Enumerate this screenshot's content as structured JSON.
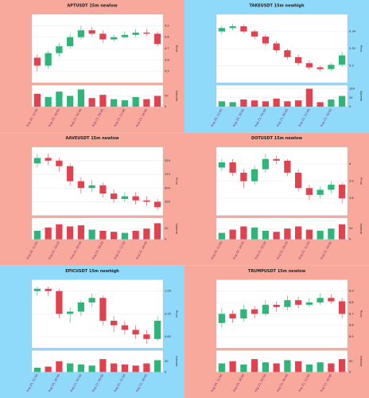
{
  "chart_data": [
    {
      "type": "candlestick",
      "title": "APTUSDT 15m newlow",
      "background": "#f9a99b",
      "up_color": "#2fb57a",
      "down_color": "#e0424f",
      "categories": [
        "Aug 20, 12:00",
        null,
        "Aug 20, 18:00",
        null,
        "Aug 21, 00:00",
        null,
        "Aug 21, 06:00",
        null,
        "Aug 21, 12:00",
        null,
        "Aug 21, 18:00",
        null
      ],
      "open": [
        4.62,
        4.55,
        4.66,
        4.72,
        4.8,
        4.86,
        4.83,
        4.78,
        4.8,
        4.82,
        4.84,
        4.83
      ],
      "high": [
        4.65,
        4.68,
        4.75,
        4.83,
        4.9,
        4.89,
        4.86,
        4.82,
        4.85,
        4.87,
        4.87,
        4.85
      ],
      "low": [
        4.5,
        4.52,
        4.63,
        4.7,
        4.78,
        4.81,
        4.75,
        4.76,
        4.79,
        4.8,
        4.81,
        4.72
      ],
      "close": [
        4.55,
        4.66,
        4.72,
        4.8,
        4.86,
        4.83,
        4.78,
        4.8,
        4.82,
        4.84,
        4.83,
        4.74
      ],
      "volume": [
        60,
        45,
        70,
        50,
        80,
        40,
        55,
        35,
        30,
        45,
        35,
        50
      ],
      "ylim": [
        4.4,
        5.0
      ],
      "yticks": [
        4.5,
        4.6,
        4.7,
        4.8,
        4.9
      ],
      "vlim": [
        0,
        100
      ],
      "vticks": [
        0,
        50
      ],
      "ylabel": "Price",
      "vlabel": "Volume"
    },
    {
      "type": "candlestick",
      "title": "TAKEUSDT 15m newhigh",
      "background": "#8fd9fb",
      "up_color": "#2fb57a",
      "down_color": "#e0424f",
      "categories": [
        "Aug 20, 12:00",
        null,
        "Aug 20, 18:00",
        null,
        "Aug 21, 00:00",
        null,
        "Aug 21, 06:00",
        null,
        "Aug 21, 12:00",
        null,
        "Aug 21, 18:00",
        null
      ],
      "open": [
        0.34,
        0.344,
        0.346,
        0.34,
        0.334,
        0.326,
        0.318,
        0.31,
        0.303,
        0.298,
        0.296,
        0.301
      ],
      "high": [
        0.347,
        0.349,
        0.348,
        0.342,
        0.336,
        0.329,
        0.32,
        0.313,
        0.306,
        0.3,
        0.303,
        0.316
      ],
      "low": [
        0.337,
        0.341,
        0.338,
        0.331,
        0.323,
        0.315,
        0.307,
        0.3,
        0.295,
        0.293,
        0.294,
        0.299
      ],
      "close": [
        0.344,
        0.346,
        0.34,
        0.334,
        0.326,
        0.318,
        0.31,
        0.303,
        0.298,
        0.296,
        0.301,
        0.312
      ],
      "volume": [
        30,
        25,
        40,
        35,
        30,
        45,
        30,
        35,
        100,
        25,
        40,
        60
      ],
      "ylim": [
        0.28,
        0.36
      ],
      "yticks": [
        0.3,
        0.32,
        0.34
      ],
      "vlim": [
        0,
        120
      ],
      "vticks": [
        0,
        50,
        100
      ],
      "ylabel": "Price",
      "vlabel": "Volume"
    },
    {
      "type": "candlestick",
      "title": "AAVEUSDT 15m newlow",
      "background": "#f9a99b",
      "up_color": "#2fb57a",
      "down_color": "#e0424f",
      "categories": [
        "Aug 20, 12:00",
        null,
        "Aug 20, 18:00",
        null,
        "Aug 21, 00:00",
        null,
        "Aug 21, 06:00",
        null,
        "Aug 21, 12:00",
        null,
        "Aug 21, 18:00",
        null
      ],
      "open": [
        318,
        322,
        320,
        316,
        305,
        300,
        302,
        296,
        292,
        294,
        291,
        290
      ],
      "high": [
        325,
        325,
        322,
        318,
        308,
        306,
        304,
        299,
        297,
        297,
        294,
        292
      ],
      "low": [
        315,
        317,
        312,
        302,
        296,
        297,
        293,
        289,
        290,
        288,
        287,
        284
      ],
      "close": [
        322,
        320,
        316,
        305,
        300,
        302,
        296,
        292,
        294,
        291,
        290,
        286
      ],
      "volume": [
        40,
        55,
        70,
        60,
        65,
        45,
        40,
        35,
        30,
        40,
        50,
        75
      ],
      "ylim": [
        280,
        330
      ],
      "yticks": [
        290,
        300,
        310,
        320
      ],
      "vlim": [
        0,
        100
      ],
      "vticks": [
        0,
        50
      ],
      "ylabel": "Price",
      "vlabel": "Volume"
    },
    {
      "type": "candlestick",
      "title": "DOTUSDT 15m newlow",
      "background": "#f9a99b",
      "up_color": "#2fb57a",
      "down_color": "#e0424f",
      "categories": [
        "Aug 20, 12:00",
        null,
        "Aug 20, 18:00",
        null,
        "Aug 21, 00:00",
        null,
        "Aug 21, 06:00",
        null,
        "Aug 21, 12:00",
        null,
        "Aug 21, 18:00",
        null
      ],
      "open": [
        3.98,
        4.01,
        3.95,
        3.9,
        3.97,
        4.03,
        4.02,
        3.95,
        3.86,
        3.82,
        3.85,
        3.88
      ],
      "high": [
        4.03,
        4.03,
        3.97,
        3.99,
        4.06,
        4.05,
        4.03,
        3.97,
        3.88,
        3.87,
        3.9,
        3.89
      ],
      "low": [
        3.96,
        3.93,
        3.86,
        3.88,
        3.95,
        4.0,
        3.93,
        3.84,
        3.79,
        3.8,
        3.83,
        3.77
      ],
      "close": [
        4.01,
        3.95,
        3.9,
        3.97,
        4.03,
        4.02,
        3.95,
        3.86,
        3.82,
        3.85,
        3.88,
        3.8
      ],
      "volume": [
        30,
        45,
        60,
        55,
        40,
        35,
        50,
        60,
        45,
        40,
        50,
        70
      ],
      "ylim": [
        3.7,
        4.1
      ],
      "yticks": [
        3.8,
        3.9,
        4.0
      ],
      "vlim": [
        0,
        100
      ],
      "vticks": [
        0,
        50
      ],
      "ylabel": "Price",
      "vlabel": "Volume"
    },
    {
      "type": "candlestick",
      "title": "EPICUSDT 15m newhigh",
      "background": "#8fd9fb",
      "up_color": "#2fb57a",
      "down_color": "#e0424f",
      "categories": [
        "Aug 20, 12:00",
        null,
        "Aug 20, 18:00",
        null,
        "Aug 21, 00:00",
        null,
        "Aug 21, 06:00",
        null,
        "Aug 21, 12:00",
        null,
        "Aug 21, 18:00",
        null
      ],
      "open": [
        1.05,
        1.06,
        1.05,
        0.95,
        0.96,
        1.0,
        1.02,
        0.92,
        0.9,
        0.88,
        0.86,
        0.84
      ],
      "high": [
        1.07,
        1.07,
        1.06,
        0.98,
        1.01,
        1.04,
        1.03,
        0.94,
        0.92,
        0.9,
        0.88,
        0.94
      ],
      "low": [
        1.03,
        1.03,
        0.93,
        0.91,
        0.94,
        0.98,
        0.9,
        0.87,
        0.86,
        0.84,
        0.82,
        0.83
      ],
      "close": [
        1.06,
        1.05,
        0.95,
        0.96,
        1.0,
        1.02,
        0.92,
        0.9,
        0.88,
        0.86,
        0.84,
        0.92
      ],
      "volume": [
        20,
        25,
        50,
        40,
        35,
        30,
        60,
        40,
        35,
        30,
        40,
        55
      ],
      "ylim": [
        0.8,
        1.1
      ],
      "yticks": [
        0.85,
        0.95,
        1.05
      ],
      "vlim": [
        0,
        100
      ],
      "vticks": [
        0,
        50
      ],
      "ylabel": "Price",
      "vlabel": "Volume"
    },
    {
      "type": "candlestick",
      "title": "TRUMPUSDT 15m newlow",
      "background": "#f9a99b",
      "up_color": "#2fb57a",
      "down_color": "#e0424f",
      "categories": [
        "Aug 20, 12:00",
        null,
        "Aug 20, 18:00",
        null,
        "Aug 21, 00:00",
        null,
        "Aug 21, 06:00",
        null,
        "Aug 21, 12:00",
        null,
        "Aug 21, 18:00",
        null
      ],
      "open": [
        8.62,
        8.7,
        8.66,
        8.74,
        8.7,
        8.78,
        8.76,
        8.82,
        8.78,
        8.8,
        8.84,
        8.81
      ],
      "high": [
        8.75,
        8.73,
        8.78,
        8.77,
        8.82,
        8.81,
        8.86,
        8.85,
        8.84,
        8.88,
        8.87,
        8.84
      ],
      "low": [
        8.58,
        8.62,
        8.63,
        8.66,
        8.68,
        8.72,
        8.73,
        8.75,
        8.76,
        8.78,
        8.79,
        8.66
      ],
      "close": [
        8.7,
        8.66,
        8.74,
        8.7,
        8.78,
        8.76,
        8.82,
        8.78,
        8.8,
        8.84,
        8.81,
        8.7
      ],
      "volume": [
        40,
        50,
        35,
        60,
        45,
        40,
        55,
        50,
        35,
        45,
        40,
        60
      ],
      "ylim": [
        8.4,
        9.0
      ],
      "yticks": [
        8.5,
        8.6,
        8.7,
        8.8,
        8.9
      ],
      "vlim": [
        0,
        100
      ],
      "vticks": [
        0,
        50
      ],
      "ylabel": "Price",
      "vlabel": "Volume"
    }
  ]
}
